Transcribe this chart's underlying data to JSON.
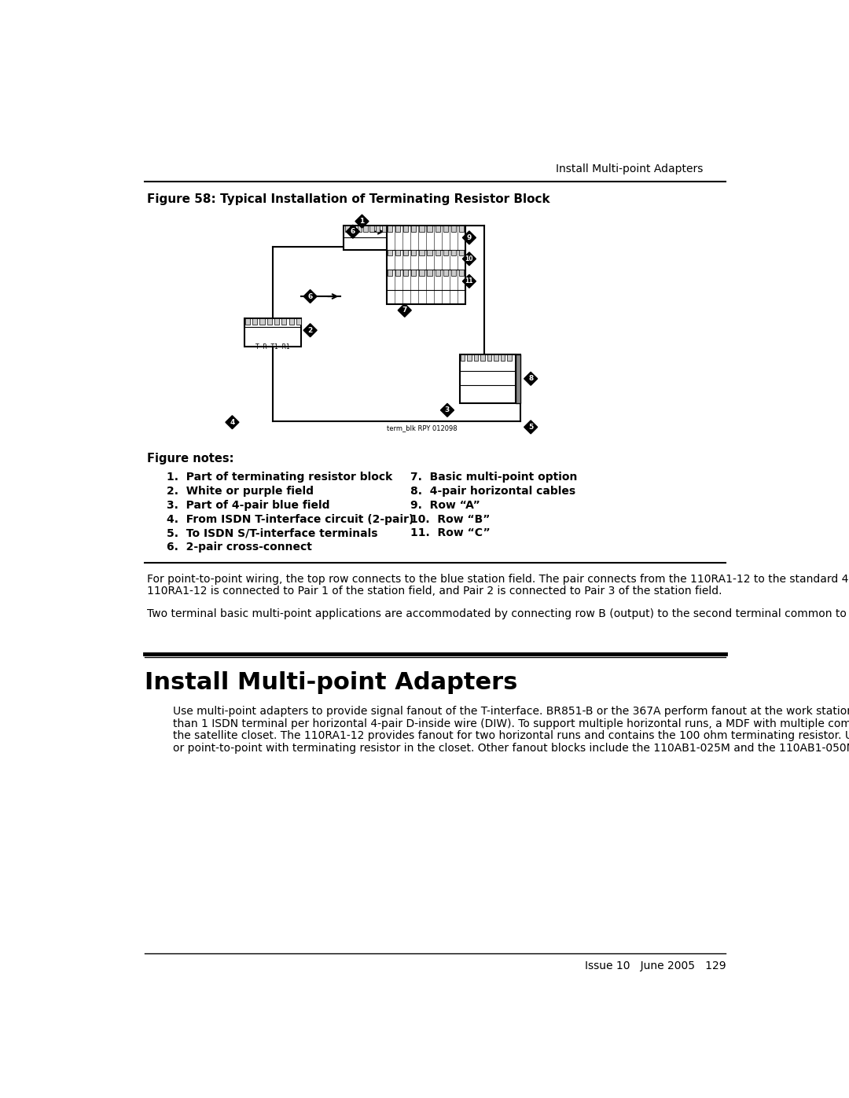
{
  "header_text": "Install Multi-point Adapters",
  "figure_title": "Figure 58: Typical Installation of Terminating Resistor Block",
  "figure_notes_title": "Figure notes:",
  "notes_col1": [
    "1.  Part of terminating resistor block",
    "2.  White or purple field",
    "3.  Part of 4-pair blue field",
    "4.  From ISDN T-interface circuit (2-pair)",
    "5.  To ISDN S/T-interface terminals",
    "6.  2-pair cross-connect"
  ],
  "notes_col2": [
    "7.  Basic multi-point option",
    "8.  4-pair horizontal cables",
    "9.  Row “A”",
    "10.  Row “B”",
    "11.  Row “C”"
  ],
  "para1": "For point-to-point wiring, the top row connects to the blue station field. The pair connects from the 110RA1-12 to the standard 4-pair circuit. Pair 1 from the 110RA1-12 is connected to Pair 1 of the station field, and Pair 2 is connected to Pair 3 of the station field.",
  "para2": "Two terminal basic multi-point applications are accommodated by connecting row B (output) to the second terminal common to the multi-point circuit.",
  "section_title": "Install Multi-point Adapters",
  "section_para": "Use multi-point adapters to provide signal fanout of the T-interface. BR851-B or the 367A perform fanout at the work station. These adapters support more than 1 ISDN terminal per horizontal 4-pair D-inside wire (DIW). To support multiple horizontal runs, a MDF with multiple common rows performs fanout in the satellite closet. The 110RA1-12 provides fanout for two horizontal runs and contains the 100 ohm terminating resistor. Use this for basic multi-point or point-to-point with terminating resistor in the closet. Other fanout blocks include the 110AB1-025M and the 110AB1-050M.",
  "footer_text": "Issue 10   June 2005   129",
  "image_credit": "term_blk RPY 012098",
  "bg_color": "#ffffff",
  "text_color": "#000000",
  "line_color": "#000000"
}
